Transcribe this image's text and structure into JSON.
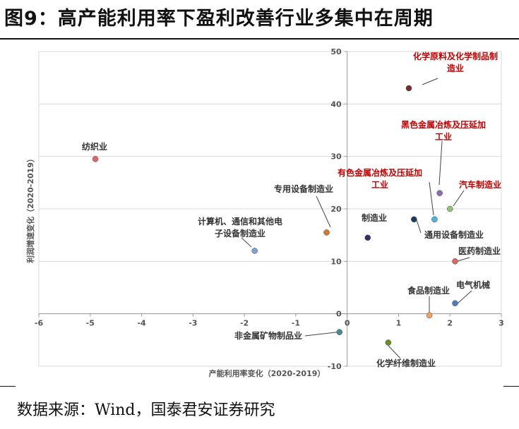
{
  "figure": {
    "title": "图9：高产能利用率下盈利改善行业多集中在周期",
    "source": "数据来源：Wind，国泰君安证券研究"
  },
  "chart_data": {
    "type": "scatter",
    "title": "图9：高产能利用率下盈利改善行业多集中在周期",
    "xlabel": "产能利用率变化（2020-2019）",
    "ylabel": "利润增速变化（2020-2019）",
    "xlim": [
      -6,
      3
    ],
    "ylim": [
      -10,
      50
    ],
    "xticks": [
      -6,
      -5,
      -4,
      -3,
      -2,
      -1,
      0,
      1,
      2,
      3
    ],
    "yticks": [
      -10,
      0,
      10,
      20,
      30,
      40,
      50
    ],
    "grid": "horizontal",
    "points": [
      {
        "label_lines": [
          "化学原料及化学制品制",
          "造业"
        ],
        "x": 1.2,
        "y": 43,
        "color": "#7a2a2a",
        "label_color": "#c00000"
      },
      {
        "label_lines": [
          "纺织业"
        ],
        "x": -4.9,
        "y": 29.5,
        "color": "#e06666",
        "label_color": "#333333"
      },
      {
        "label_lines": [
          "黑色金属冶炼及压延加",
          "工业"
        ],
        "x": 1.8,
        "y": 23,
        "color": "#8e6bb0",
        "label_color": "#c00000"
      },
      {
        "label_lines": [
          "汽车制造业"
        ],
        "x": 2.0,
        "y": 20,
        "color": "#93c47d",
        "label_color": "#c00000"
      },
      {
        "label_lines": [
          "有色金属冶炼及压延加",
          "工业"
        ],
        "x": 1.7,
        "y": 18,
        "color": "#4fb3d9",
        "label_color": "#c00000"
      },
      {
        "label_lines": [
          "通用设备制造业"
        ],
        "x": 1.3,
        "y": 18,
        "color": "#1f3b5c",
        "label_color": "#333333"
      },
      {
        "label_lines": [
          "专用设备制造业"
        ],
        "x": -0.4,
        "y": 15.5,
        "color": "#d4782c",
        "label_color": "#333333"
      },
      {
        "label_lines": [
          "制造业"
        ],
        "x": 0.4,
        "y": 14.5,
        "color": "#2e3266",
        "label_color": "#333333"
      },
      {
        "label_lines": [
          "计算机、通信和其他电",
          "子设备制造业"
        ],
        "x": -1.8,
        "y": 12,
        "color": "#7fa3d1",
        "label_color": "#333333"
      },
      {
        "label_lines": [
          "医药制造业"
        ],
        "x": 2.1,
        "y": 10,
        "color": "#e06666",
        "label_color": "#333333"
      },
      {
        "label_lines": [
          "电气机械"
        ],
        "x": 2.1,
        "y": 2,
        "color": "#4a7fc1",
        "label_color": "#333333"
      },
      {
        "label_lines": [
          "食品制造业"
        ],
        "x": 1.6,
        "y": -0.3,
        "color": "#f4a460",
        "label_color": "#333333"
      },
      {
        "label_lines": [
          "非金属矿物制品业"
        ],
        "x": -0.15,
        "y": -3.5,
        "color": "#4a8a8a",
        "label_color": "#333333"
      },
      {
        "label_lines": [
          "化学纤维制造业"
        ],
        "x": 0.8,
        "y": -5.5,
        "color": "#6b8e23",
        "label_color": "#333333"
      }
    ]
  }
}
